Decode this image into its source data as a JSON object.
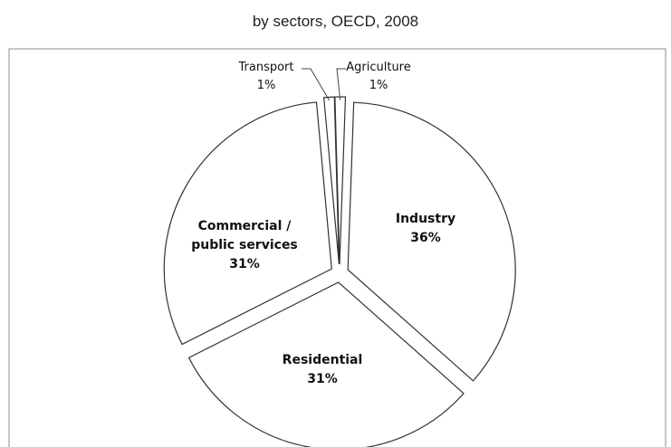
{
  "chart_data": {
    "type": "pie",
    "title": "by sectors, OECD, 2008",
    "exploded": true,
    "grid": false,
    "legend": "none",
    "slices": [
      {
        "label": "Industry",
        "display": [
          "Industry"
        ],
        "value": 36,
        "value_label": "36%",
        "emphasis": "bold"
      },
      {
        "label": "Residential",
        "display": [
          "Residential"
        ],
        "value": 31,
        "value_label": "31%",
        "emphasis": "bold"
      },
      {
        "label": "Commercial / public services",
        "display": [
          "Commercial /",
          "public services"
        ],
        "value": 31,
        "value_label": "31%",
        "emphasis": "bold"
      },
      {
        "label": "Transport",
        "display": [
          "Transport"
        ],
        "value": 1,
        "value_label": "1%",
        "emphasis": "normal"
      },
      {
        "label": "Agriculture",
        "display": [
          "Agriculture"
        ],
        "value": 1,
        "value_label": "1%",
        "emphasis": "normal"
      }
    ],
    "colors": {
      "fill": "#ffffff",
      "stroke": "#333333",
      "text": "#111111"
    }
  }
}
